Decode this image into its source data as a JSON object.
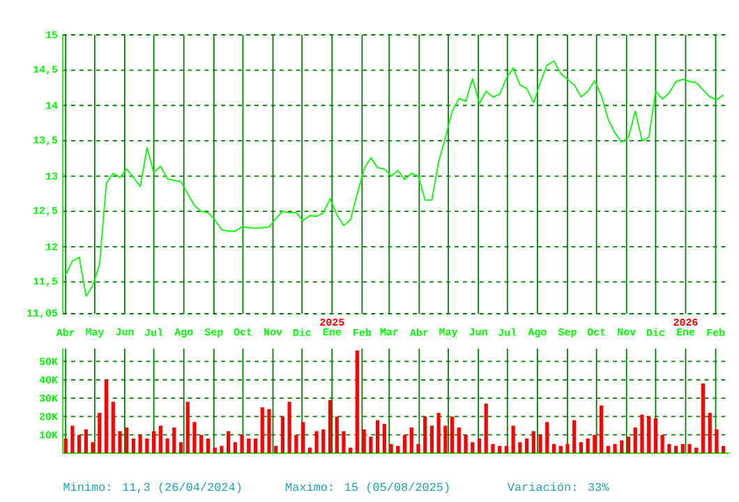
{
  "chart_data": [
    {
      "type": "line",
      "grid": true,
      "xlim": [
        "2024-03-29",
        "2026-02-15"
      ],
      "xticks": [
        {
          "value": "2024-04-01",
          "label": "Abr"
        },
        {
          "value": "2024-05-01",
          "label": "May"
        },
        {
          "value": "2024-06-01",
          "label": "Jun"
        },
        {
          "value": "2024-07-01",
          "label": "Jul"
        },
        {
          "value": "2024-08-01",
          "label": "Ago"
        },
        {
          "value": "2024-09-01",
          "label": "Sep"
        },
        {
          "value": "2024-10-01",
          "label": "Oct"
        },
        {
          "value": "2024-11-01",
          "label": "Nov"
        },
        {
          "value": "2024-12-01",
          "label": "Dic"
        },
        {
          "value": "2025-01-01",
          "label": "Ene"
        },
        {
          "value": "2025-02-01",
          "label": "Feb"
        },
        {
          "value": "2025-03-01",
          "label": "Mar"
        },
        {
          "value": "2025-04-01",
          "label": "Abr"
        },
        {
          "value": "2025-05-01",
          "label": "May"
        },
        {
          "value": "2025-06-01",
          "label": "Jun"
        },
        {
          "value": "2025-07-01",
          "label": "Jul"
        },
        {
          "value": "2025-08-01",
          "label": "Ago"
        },
        {
          "value": "2025-09-01",
          "label": "Sep"
        },
        {
          "value": "2025-10-01",
          "label": "Oct"
        },
        {
          "value": "2025-11-01",
          "label": "Nov"
        },
        {
          "value": "2025-12-01",
          "label": "Dic"
        },
        {
          "value": "2026-01-01",
          "label": "Ene"
        },
        {
          "value": "2026-02-01",
          "label": "Feb"
        }
      ],
      "x2lim": [
        "2024-03-29",
        "2026-02-15"
      ],
      "x2ticks": [
        {
          "value": "2025-01-01",
          "label": "2025"
        },
        {
          "value": "2026-01-01",
          "label": "2026"
        }
      ],
      "ylim": [
        11.05,
        15
      ],
      "yticks": [
        {
          "value": 11.05,
          "label": "11,05"
        },
        {
          "value": 11.5,
          "label": "11,5"
        },
        12,
        {
          "value": 12.5,
          "label": "12,5"
        },
        13,
        {
          "value": 13.5,
          "label": "13,5"
        },
        14,
        {
          "value": 14.5,
          "label": "14,5"
        },
        15
      ],
      "x": [
        "2024-04-01",
        "2024-04-08",
        "2024-04-15",
        "2024-04-22",
        "2024-04-29",
        "2024-05-06",
        "2024-05-13",
        "2024-05-20",
        "2024-05-27",
        "2024-06-03",
        "2024-06-10",
        "2024-06-17",
        "2024-06-24",
        "2024-07-01",
        "2024-07-08",
        "2024-07-15",
        "2024-07-22",
        "2024-07-29",
        "2024-08-05",
        "2024-08-12",
        "2024-08-19",
        "2024-08-26",
        "2024-09-02",
        "2024-09-09",
        "2024-09-16",
        "2024-09-23",
        "2024-09-30",
        "2024-10-07",
        "2024-10-14",
        "2024-10-21",
        "2024-10-28",
        "2024-11-04",
        "2024-11-11",
        "2024-11-18",
        "2024-11-25",
        "2024-12-02",
        "2024-12-09",
        "2024-12-16",
        "2024-12-23",
        "2024-12-30",
        "2025-01-06",
        "2025-01-13",
        "2025-01-20",
        "2025-01-27",
        "2025-02-03",
        "2025-02-10",
        "2025-02-17",
        "2025-02-24",
        "2025-03-03",
        "2025-03-10",
        "2025-03-17",
        "2025-03-24",
        "2025-03-31",
        "2025-04-07",
        "2025-04-14",
        "2025-04-21",
        "2025-04-28",
        "2025-05-05",
        "2025-05-12",
        "2025-05-19",
        "2025-05-26",
        "2025-06-02",
        "2025-06-09",
        "2025-06-16",
        "2025-06-23",
        "2025-06-30",
        "2025-07-07",
        "2025-07-14",
        "2025-07-21",
        "2025-07-28",
        "2025-08-04",
        "2025-08-11",
        "2025-08-18",
        "2025-08-25",
        "2025-09-01",
        "2025-09-08",
        "2025-09-15",
        "2025-09-22",
        "2025-09-29",
        "2025-10-06",
        "2025-10-13",
        "2025-10-20",
        "2025-10-27",
        "2025-11-03",
        "2025-11-10",
        "2025-11-17",
        "2025-11-24",
        "2025-12-01",
        "2025-12-08",
        "2025-12-15",
        "2025-12-22",
        "2025-12-29",
        "2026-01-05",
        "2026-01-12",
        "2026-01-19",
        "2026-01-26",
        "2026-02-02",
        "2026-02-09"
      ],
      "series": [
        {
          "color": "#00ff00",
          "values": [
            11.6,
            11.8,
            11.85,
            11.3,
            11.45,
            11.75,
            12.9,
            13.04,
            12.98,
            13.1,
            12.98,
            12.85,
            13.4,
            13.05,
            13.14,
            12.96,
            12.94,
            12.92,
            12.75,
            12.58,
            12.5,
            12.48,
            12.38,
            12.24,
            12.22,
            12.22,
            12.28,
            12.27,
            12.26,
            12.27,
            12.28,
            12.4,
            12.5,
            12.48,
            12.48,
            12.37,
            12.44,
            12.43,
            12.48,
            12.68,
            12.45,
            12.3,
            12.38,
            12.75,
            13.1,
            13.26,
            13.12,
            13.1,
            13.0,
            13.08,
            12.95,
            13.04,
            13.0,
            12.66,
            12.66,
            13.2,
            13.55,
            13.92,
            14.1,
            14.06,
            14.38,
            14.03,
            14.2,
            14.12,
            14.16,
            14.39,
            14.53,
            14.29,
            14.24,
            14.04,
            14.33,
            14.57,
            14.63,
            14.45,
            14.37,
            14.29,
            14.12,
            14.2,
            14.35,
            14.14,
            13.8,
            13.61,
            13.48,
            13.55,
            13.92,
            13.5,
            13.55,
            14.2,
            14.09,
            14.18,
            14.34,
            14.37,
            14.34,
            14.32,
            14.22,
            14.12,
            14.08,
            14.15
          ]
        }
      ]
    },
    {
      "type": "bar",
      "grid": true,
      "tick_labels": "y",
      "xlim": [
        "2024-03-29",
        "2026-02-15"
      ],
      "xticks": [
        {
          "value": "2024-04-01",
          "label": null
        },
        {
          "value": "2024-05-01",
          "label": null
        },
        {
          "value": "2024-06-01",
          "label": null
        },
        {
          "value": "2024-07-01",
          "label": null
        },
        {
          "value": "2024-08-01",
          "label": null
        },
        {
          "value": "2024-09-01",
          "label": null
        },
        {
          "value": "2024-10-01",
          "label": null
        },
        {
          "value": "2024-11-01",
          "label": null
        },
        {
          "value": "2024-12-01",
          "label": null
        },
        {
          "value": "2025-01-01",
          "label": null
        },
        {
          "value": "2025-02-01",
          "label": null
        },
        {
          "value": "2025-03-01",
          "label": null
        },
        {
          "value": "2025-04-01",
          "label": null
        },
        {
          "value": "2025-05-01",
          "label": null
        },
        {
          "value": "2025-06-01",
          "label": null
        },
        {
          "value": "2025-07-01",
          "label": null
        },
        {
          "value": "2025-08-01",
          "label": null
        },
        {
          "value": "2025-09-01",
          "label": null
        },
        {
          "value": "2025-10-01",
          "label": null
        },
        {
          "value": "2025-11-01",
          "label": null
        },
        {
          "value": "2025-12-01",
          "label": null
        },
        {
          "value": "2026-01-01",
          "label": null
        },
        {
          "value": "2026-02-01",
          "label": null
        }
      ],
      "ylim": [
        0,
        57000
      ],
      "yticks": [
        {
          "value": 10000,
          "label": "10K"
        },
        {
          "value": 20000,
          "label": "20K"
        },
        {
          "value": 30000,
          "label": "30K"
        },
        {
          "value": 40000,
          "label": "40K"
        },
        {
          "value": 50000,
          "label": "50K"
        }
      ],
      "x": [
        "2024-04-01",
        "2024-04-08",
        "2024-04-15",
        "2024-04-22",
        "2024-04-29",
        "2024-05-06",
        "2024-05-13",
        "2024-05-20",
        "2024-05-27",
        "2024-06-03",
        "2024-06-10",
        "2024-06-17",
        "2024-06-24",
        "2024-07-01",
        "2024-07-08",
        "2024-07-15",
        "2024-07-22",
        "2024-07-29",
        "2024-08-05",
        "2024-08-12",
        "2024-08-19",
        "2024-08-26",
        "2024-09-02",
        "2024-09-09",
        "2024-09-16",
        "2024-09-23",
        "2024-09-30",
        "2024-10-07",
        "2024-10-14",
        "2024-10-21",
        "2024-10-28",
        "2024-11-04",
        "2024-11-11",
        "2024-11-18",
        "2024-11-25",
        "2024-12-02",
        "2024-12-09",
        "2024-12-16",
        "2024-12-23",
        "2024-12-30",
        "2025-01-06",
        "2025-01-13",
        "2025-01-20",
        "2025-01-27",
        "2025-02-03",
        "2025-02-10",
        "2025-02-17",
        "2025-02-24",
        "2025-03-03",
        "2025-03-10",
        "2025-03-17",
        "2025-03-24",
        "2025-03-31",
        "2025-04-07",
        "2025-04-14",
        "2025-04-21",
        "2025-04-28",
        "2025-05-05",
        "2025-05-12",
        "2025-05-19",
        "2025-05-26",
        "2025-06-02",
        "2025-06-09",
        "2025-06-16",
        "2025-06-23",
        "2025-06-30",
        "2025-07-07",
        "2025-07-14",
        "2025-07-21",
        "2025-07-28",
        "2025-08-04",
        "2025-08-11",
        "2025-08-18",
        "2025-08-25",
        "2025-09-01",
        "2025-09-08",
        "2025-09-15",
        "2025-09-22",
        "2025-09-29",
        "2025-10-06",
        "2025-10-13",
        "2025-10-20",
        "2025-10-27",
        "2025-11-03",
        "2025-11-10",
        "2025-11-17",
        "2025-11-24",
        "2025-12-01",
        "2025-12-08",
        "2025-12-15",
        "2025-12-22",
        "2025-12-29",
        "2026-01-05",
        "2026-01-12",
        "2026-01-19",
        "2026-01-26",
        "2026-02-02",
        "2026-02-09"
      ],
      "series": [
        {
          "color": "#ff0000",
          "values": [
            8000,
            15000,
            10000,
            13000,
            6000,
            22000,
            40000,
            28000,
            12000,
            14000,
            8000,
            10000,
            8000,
            12000,
            15000,
            8000,
            14000,
            6000,
            28000,
            17000,
            10000,
            8000,
            3000,
            4000,
            12000,
            6000,
            10000,
            8000,
            8000,
            25000,
            24000,
            4000,
            20000,
            28000,
            10000,
            17000,
            3000,
            12000,
            13000,
            29000,
            20000,
            12000,
            3000,
            56000,
            13000,
            9000,
            18000,
            16000,
            5000,
            4000,
            10000,
            14000,
            5000,
            20000,
            15000,
            22000,
            15000,
            20000,
            14000,
            10000,
            6000,
            8000,
            27000,
            5000,
            4000,
            4000,
            15000,
            6000,
            8000,
            12000,
            10000,
            17000,
            5000,
            4000,
            5000,
            18000,
            6000,
            8000,
            10000,
            26000,
            4000,
            5000,
            7000,
            9000,
            14000,
            21000,
            20000,
            19000,
            10000,
            5000,
            4000,
            5000,
            5000,
            3000,
            38000,
            22000,
            13000,
            4000
          ]
        }
      ],
      "annotations": [
        "Minimo: 11,3 (26/04/2024)",
        "Maximo: 15 (05/08/2025)",
        "Variación: 33%"
      ]
    }
  ]
}
